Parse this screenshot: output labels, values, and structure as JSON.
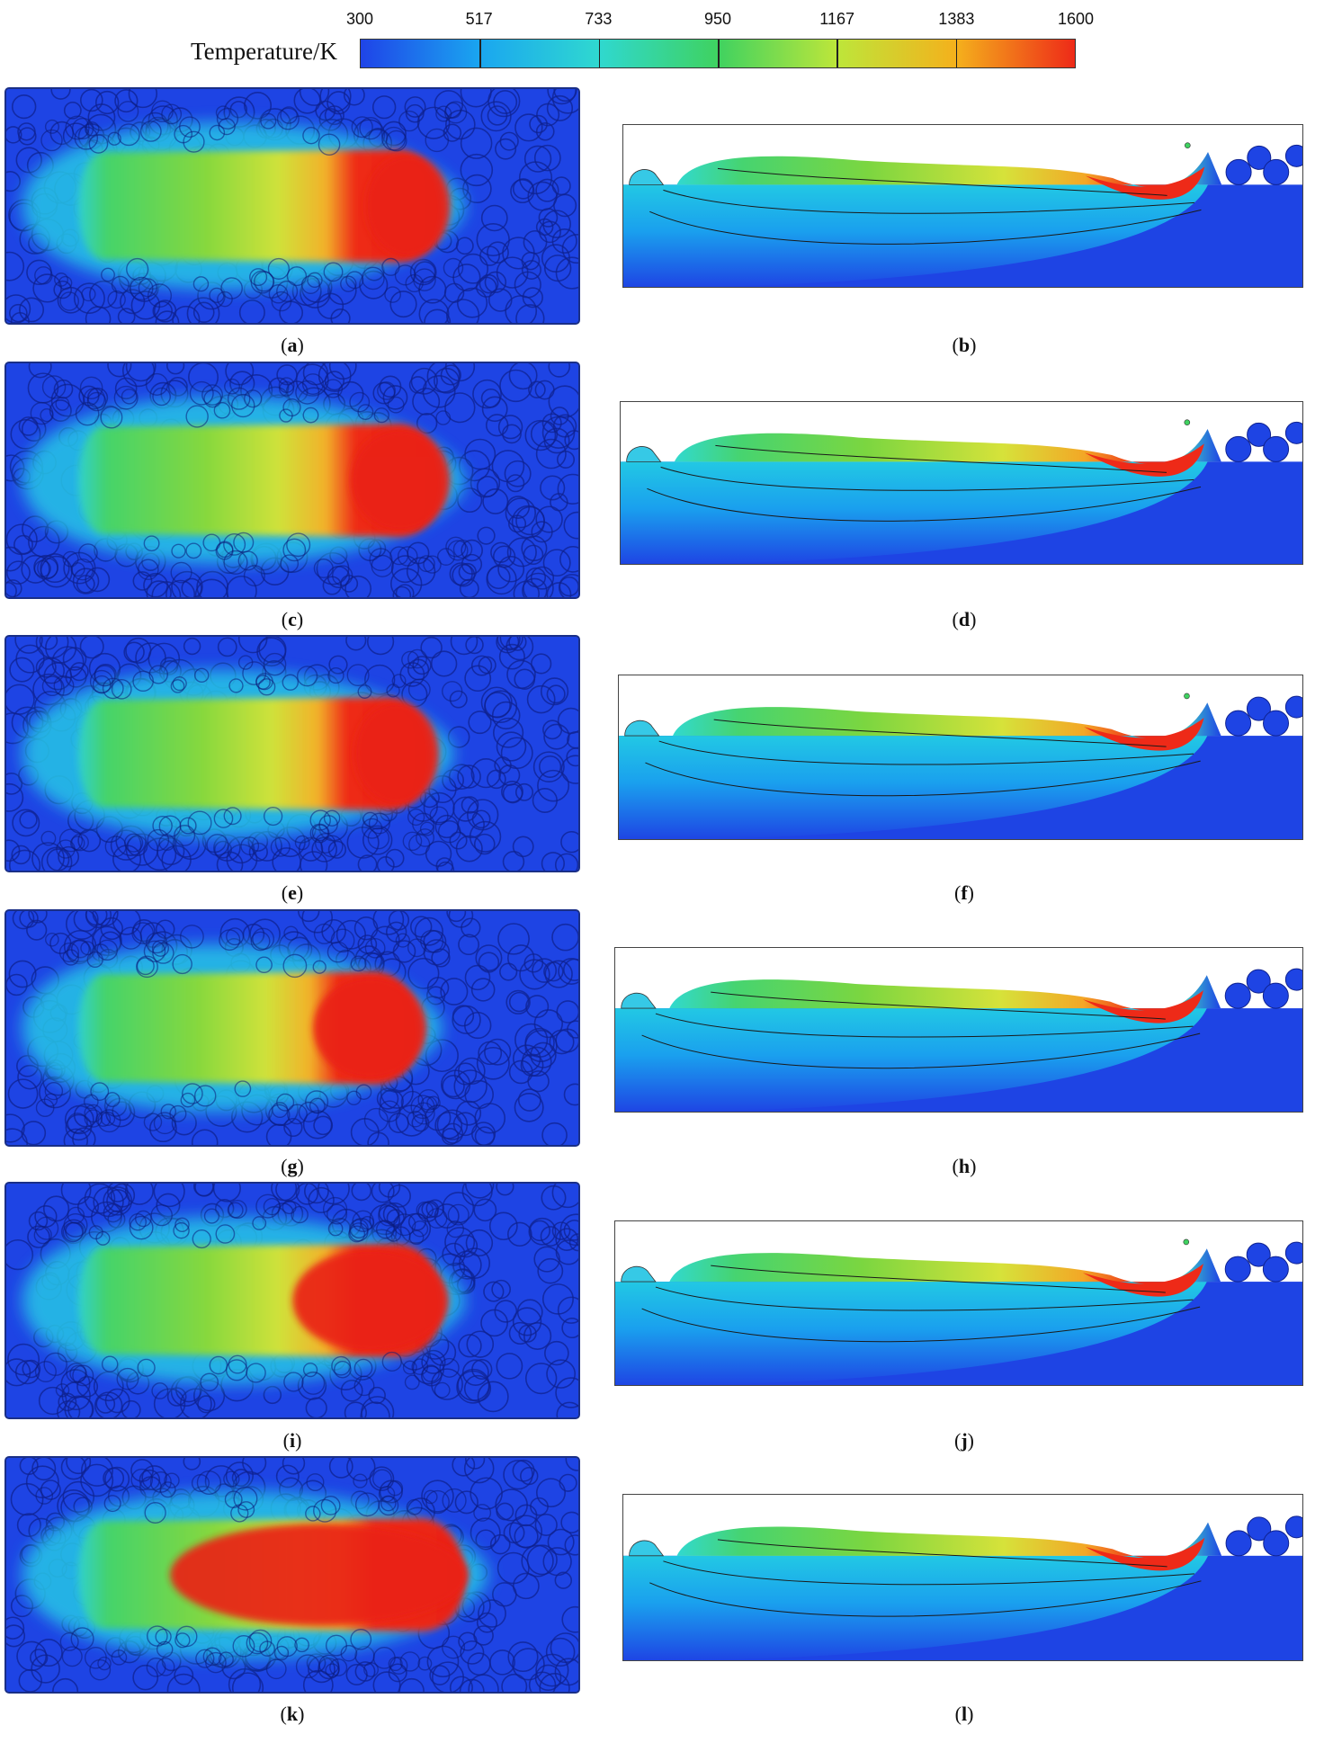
{
  "colorbar": {
    "title": "Temperature/K",
    "ticks": [
      "300",
      "517",
      "733",
      "950",
      "1167",
      "1383",
      "1600"
    ],
    "colors": [
      "#1f44e8",
      "#1aa6f0",
      "#2fd8d0",
      "#3fd260",
      "#bde63a",
      "#f4b11c",
      "#ee2a18"
    ]
  },
  "panels": [
    {
      "letter": "a",
      "view": "top",
      "hot": 0.42,
      "extent": 0.8,
      "bead": 0.66
    },
    {
      "letter": "b",
      "view": "side",
      "spatter": true
    },
    {
      "letter": "c",
      "view": "top",
      "hot": 0.4,
      "extent": 0.8,
      "bead": 0.64
    },
    {
      "letter": "d",
      "view": "side",
      "spatter": true
    },
    {
      "letter": "e",
      "view": "top",
      "hot": 0.4,
      "extent": 0.78,
      "bead": 0.64
    },
    {
      "letter": "f",
      "view": "side",
      "spatter": true
    },
    {
      "letter": "g",
      "view": "top",
      "hot": 0.3,
      "extent": 0.76,
      "bead": 0.58
    },
    {
      "letter": "h",
      "view": "side",
      "spatter": false
    },
    {
      "letter": "i",
      "view": "top",
      "hot": 0.34,
      "extent": 0.8,
      "bead": 0.56
    },
    {
      "letter": "j",
      "view": "side",
      "spatter": true
    },
    {
      "letter": "k",
      "view": "top",
      "hot": 0.26,
      "extent": 0.84,
      "bead": 0.4
    },
    {
      "letter": "l",
      "view": "side",
      "spatter": false
    }
  ]
}
